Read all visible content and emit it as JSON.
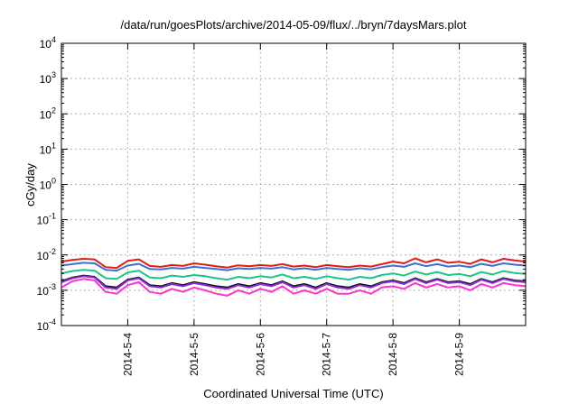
{
  "chart_data": {
    "type": "line",
    "title": "/data/run/goesPlots/archive/2014-05-09/flux/../bryn/7daysMars.plot",
    "xlabel": "Coordinated Universal Time (UTC)",
    "ylabel": "cGy/day",
    "yscale": "log",
    "ylim": [
      0.0001,
      10000
    ],
    "xlim": [
      "2014-05-03T00:00",
      "2014-05-10T00:00"
    ],
    "grid": true,
    "legend": "none",
    "y_ticks": [
      {
        "base": "10",
        "exp": "-4"
      },
      {
        "base": "10",
        "exp": "-3"
      },
      {
        "base": "10",
        "exp": "-2"
      },
      {
        "base": "10",
        "exp": "-1"
      },
      {
        "base": "10",
        "exp": "0"
      },
      {
        "base": "10",
        "exp": "1"
      },
      {
        "base": "10",
        "exp": "2"
      },
      {
        "base": "10",
        "exp": "3"
      },
      {
        "base": "10",
        "exp": "4"
      }
    ],
    "x_ticks": [
      "2014-5-4",
      "2014-5-5",
      "2014-5-6",
      "2014-5-7",
      "2014-5-8",
      "2014-5-9"
    ],
    "x": [
      "2014-05-03T00:00",
      "2014-05-03T04:00",
      "2014-05-03T08:00",
      "2014-05-03T12:00",
      "2014-05-03T16:00",
      "2014-05-03T20:00",
      "2014-05-04T00:00",
      "2014-05-04T04:00",
      "2014-05-04T08:00",
      "2014-05-04T12:00",
      "2014-05-04T16:00",
      "2014-05-04T20:00",
      "2014-05-05T00:00",
      "2014-05-05T04:00",
      "2014-05-05T08:00",
      "2014-05-05T12:00",
      "2014-05-05T16:00",
      "2014-05-05T20:00",
      "2014-05-06T00:00",
      "2014-05-06T04:00",
      "2014-05-06T08:00",
      "2014-05-06T12:00",
      "2014-05-06T16:00",
      "2014-05-06T20:00",
      "2014-05-07T00:00",
      "2014-05-07T04:00",
      "2014-05-07T08:00",
      "2014-05-07T12:00",
      "2014-05-07T16:00",
      "2014-05-07T20:00",
      "2014-05-08T00:00",
      "2014-05-08T04:00",
      "2014-05-08T08:00",
      "2014-05-08T12:00",
      "2014-05-08T16:00",
      "2014-05-08T20:00",
      "2014-05-09T00:00",
      "2014-05-09T04:00",
      "2014-05-09T08:00",
      "2014-05-09T12:00",
      "2014-05-09T16:00",
      "2014-05-09T20:00",
      "2014-05-10T00:00"
    ],
    "series": [
      {
        "color": "#e41a1c",
        "values": [
          0.0065,
          0.0072,
          0.0078,
          0.0075,
          0.0045,
          0.0043,
          0.0068,
          0.0075,
          0.0049,
          0.0046,
          0.0052,
          0.0049,
          0.0058,
          0.0053,
          0.0048,
          0.0044,
          0.0051,
          0.0048,
          0.0052,
          0.0049,
          0.0055,
          0.0047,
          0.005,
          0.0045,
          0.0052,
          0.0048,
          0.0045,
          0.005,
          0.0047,
          0.0055,
          0.0065,
          0.0058,
          0.008,
          0.0062,
          0.0075,
          0.006,
          0.0064,
          0.0056,
          0.0075,
          0.0062,
          0.0078,
          0.007,
          0.0065
        ]
      },
      {
        "color": "#3b6fd6",
        "values": [
          0.005,
          0.0055,
          0.006,
          0.0058,
          0.0038,
          0.0036,
          0.005,
          0.0056,
          0.004,
          0.0039,
          0.0043,
          0.0041,
          0.0046,
          0.0043,
          0.004,
          0.0037,
          0.0042,
          0.004,
          0.0043,
          0.0041,
          0.0045,
          0.0039,
          0.0042,
          0.0038,
          0.0043,
          0.004,
          0.0038,
          0.0042,
          0.0039,
          0.0045,
          0.005,
          0.0046,
          0.0058,
          0.0048,
          0.0055,
          0.0047,
          0.005,
          0.0045,
          0.0056,
          0.0049,
          0.0058,
          0.0053,
          0.005
        ]
      },
      {
        "color": "#1cc48c",
        "values": [
          0.003,
          0.0035,
          0.0038,
          0.0036,
          0.0022,
          0.0021,
          0.0032,
          0.0036,
          0.0023,
          0.0022,
          0.0026,
          0.0024,
          0.0027,
          0.0025,
          0.0022,
          0.002,
          0.0024,
          0.0022,
          0.0025,
          0.0023,
          0.0028,
          0.0022,
          0.0024,
          0.0021,
          0.0025,
          0.0022,
          0.002,
          0.0024,
          0.0022,
          0.0027,
          0.003,
          0.0026,
          0.0034,
          0.0028,
          0.0033,
          0.0027,
          0.0029,
          0.0025,
          0.0033,
          0.0028,
          0.0035,
          0.0031,
          0.0029
        ]
      },
      {
        "color": "#111111",
        "values": [
          0.0018,
          0.0023,
          0.0026,
          0.0024,
          0.0013,
          0.0012,
          0.002,
          0.0023,
          0.0014,
          0.0013,
          0.0016,
          0.0014,
          0.0017,
          0.0015,
          0.0013,
          0.0012,
          0.0015,
          0.0013,
          0.0016,
          0.0014,
          0.0018,
          0.0013,
          0.0015,
          0.0012,
          0.0016,
          0.0013,
          0.0012,
          0.0015,
          0.0013,
          0.0017,
          0.0019,
          0.0016,
          0.0022,
          0.0017,
          0.0021,
          0.0017,
          0.0018,
          0.0015,
          0.0021,
          0.0017,
          0.0022,
          0.0019,
          0.0018
        ]
      },
      {
        "color": "#8a2be2",
        "values": [
          0.0017,
          0.0022,
          0.0025,
          0.0023,
          0.0012,
          0.0011,
          0.0019,
          0.0022,
          0.0013,
          0.0012,
          0.0015,
          0.0013,
          0.0016,
          0.0014,
          0.0012,
          0.0011,
          0.0014,
          0.0012,
          0.0015,
          0.0013,
          0.0017,
          0.0012,
          0.0014,
          0.0011,
          0.0015,
          0.0012,
          0.0011,
          0.0014,
          0.0012,
          0.0016,
          0.0018,
          0.0015,
          0.0021,
          0.0016,
          0.002,
          0.0016,
          0.0017,
          0.0014,
          0.002,
          0.0016,
          0.0021,
          0.0018,
          0.0017
        ]
      },
      {
        "color": "#ff33cc",
        "values": [
          0.0012,
          0.0018,
          0.0021,
          0.0019,
          0.0009,
          0.0008,
          0.0014,
          0.0017,
          0.0009,
          0.0008,
          0.0011,
          0.0009,
          0.0012,
          0.001,
          0.0008,
          0.0007,
          0.001,
          0.0008,
          0.0011,
          0.0009,
          0.0013,
          0.0008,
          0.001,
          0.0008,
          0.0011,
          0.0008,
          0.0008,
          0.001,
          0.0008,
          0.0012,
          0.0013,
          0.0011,
          0.0016,
          0.0012,
          0.0015,
          0.0012,
          0.0013,
          0.001,
          0.0015,
          0.0012,
          0.0016,
          0.0014,
          0.0013
        ]
      }
    ]
  }
}
